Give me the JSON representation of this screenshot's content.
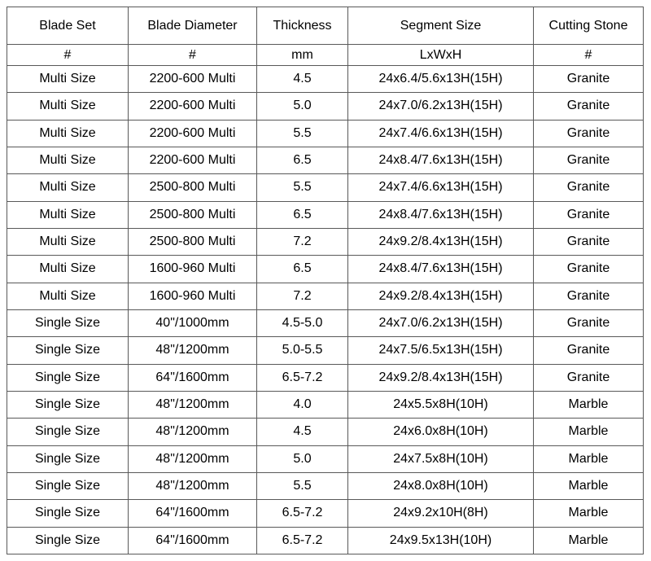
{
  "colors": {
    "background": "#ffffff",
    "border": "#595959",
    "text": "#000000"
  },
  "table": {
    "columns": [
      {
        "key": "blade-set",
        "label": "Blade Set",
        "unit": "#"
      },
      {
        "key": "blade-diameter",
        "label": "Blade Diameter",
        "unit": "#"
      },
      {
        "key": "thickness",
        "label": "Thickness",
        "unit": "mm"
      },
      {
        "key": "segment-size",
        "label": "Segment Size",
        "unit": "LxWxH"
      },
      {
        "key": "cutting-stone",
        "label": "Cutting Stone",
        "unit": "#"
      }
    ],
    "rows": [
      [
        "Multi Size",
        "2200-600 Multi",
        "4.5",
        "24x6.4/5.6x13H(15H)",
        "Granite"
      ],
      [
        "Multi Size",
        "2200-600 Multi",
        "5.0",
        "24x7.0/6.2x13H(15H)",
        "Granite"
      ],
      [
        "Multi Size",
        "2200-600 Multi",
        "5.5",
        "24x7.4/6.6x13H(15H)",
        "Granite"
      ],
      [
        "Multi Size",
        "2200-600 Multi",
        "6.5",
        "24x8.4/7.6x13H(15H)",
        "Granite"
      ],
      [
        "Multi Size",
        "2500-800 Multi",
        "5.5",
        "24x7.4/6.6x13H(15H)",
        "Granite"
      ],
      [
        "Multi Size",
        "2500-800 Multi",
        "6.5",
        "24x8.4/7.6x13H(15H)",
        "Granite"
      ],
      [
        "Multi Size",
        "2500-800 Multi",
        "7.2",
        "24x9.2/8.4x13H(15H)",
        "Granite"
      ],
      [
        "Multi Size",
        "1600-960 Multi",
        "6.5",
        "24x8.4/7.6x13H(15H)",
        "Granite"
      ],
      [
        "Multi Size",
        "1600-960 Multi",
        "7.2",
        "24x9.2/8.4x13H(15H)",
        "Granite"
      ],
      [
        "Single Size",
        "40\"/1000mm",
        "4.5-5.0",
        "24x7.0/6.2x13H(15H)",
        "Granite"
      ],
      [
        "Single Size",
        "48\"/1200mm",
        "5.0-5.5",
        "24x7.5/6.5x13H(15H)",
        "Granite"
      ],
      [
        "Single Size",
        "64\"/1600mm",
        "6.5-7.2",
        "24x9.2/8.4x13H(15H)",
        "Granite"
      ],
      [
        "Single Size",
        "48\"/1200mm",
        "4.0",
        "24x5.5x8H(10H)",
        "Marble"
      ],
      [
        "Single Size",
        "48\"/1200mm",
        "4.5",
        "24x6.0x8H(10H)",
        "Marble"
      ],
      [
        "Single Size",
        "48\"/1200mm",
        "5.0",
        "24x7.5x8H(10H)",
        "Marble"
      ],
      [
        "Single Size",
        "48\"/1200mm",
        "5.5",
        "24x8.0x8H(10H)",
        "Marble"
      ],
      [
        "Single Size",
        "64\"/1600mm",
        "6.5-7.2",
        "24x9.2x10H(8H)",
        "Marble"
      ],
      [
        "Single Size",
        "64\"/1600mm",
        "6.5-7.2",
        "24x9.5x13H(10H)",
        "Marble"
      ]
    ]
  }
}
